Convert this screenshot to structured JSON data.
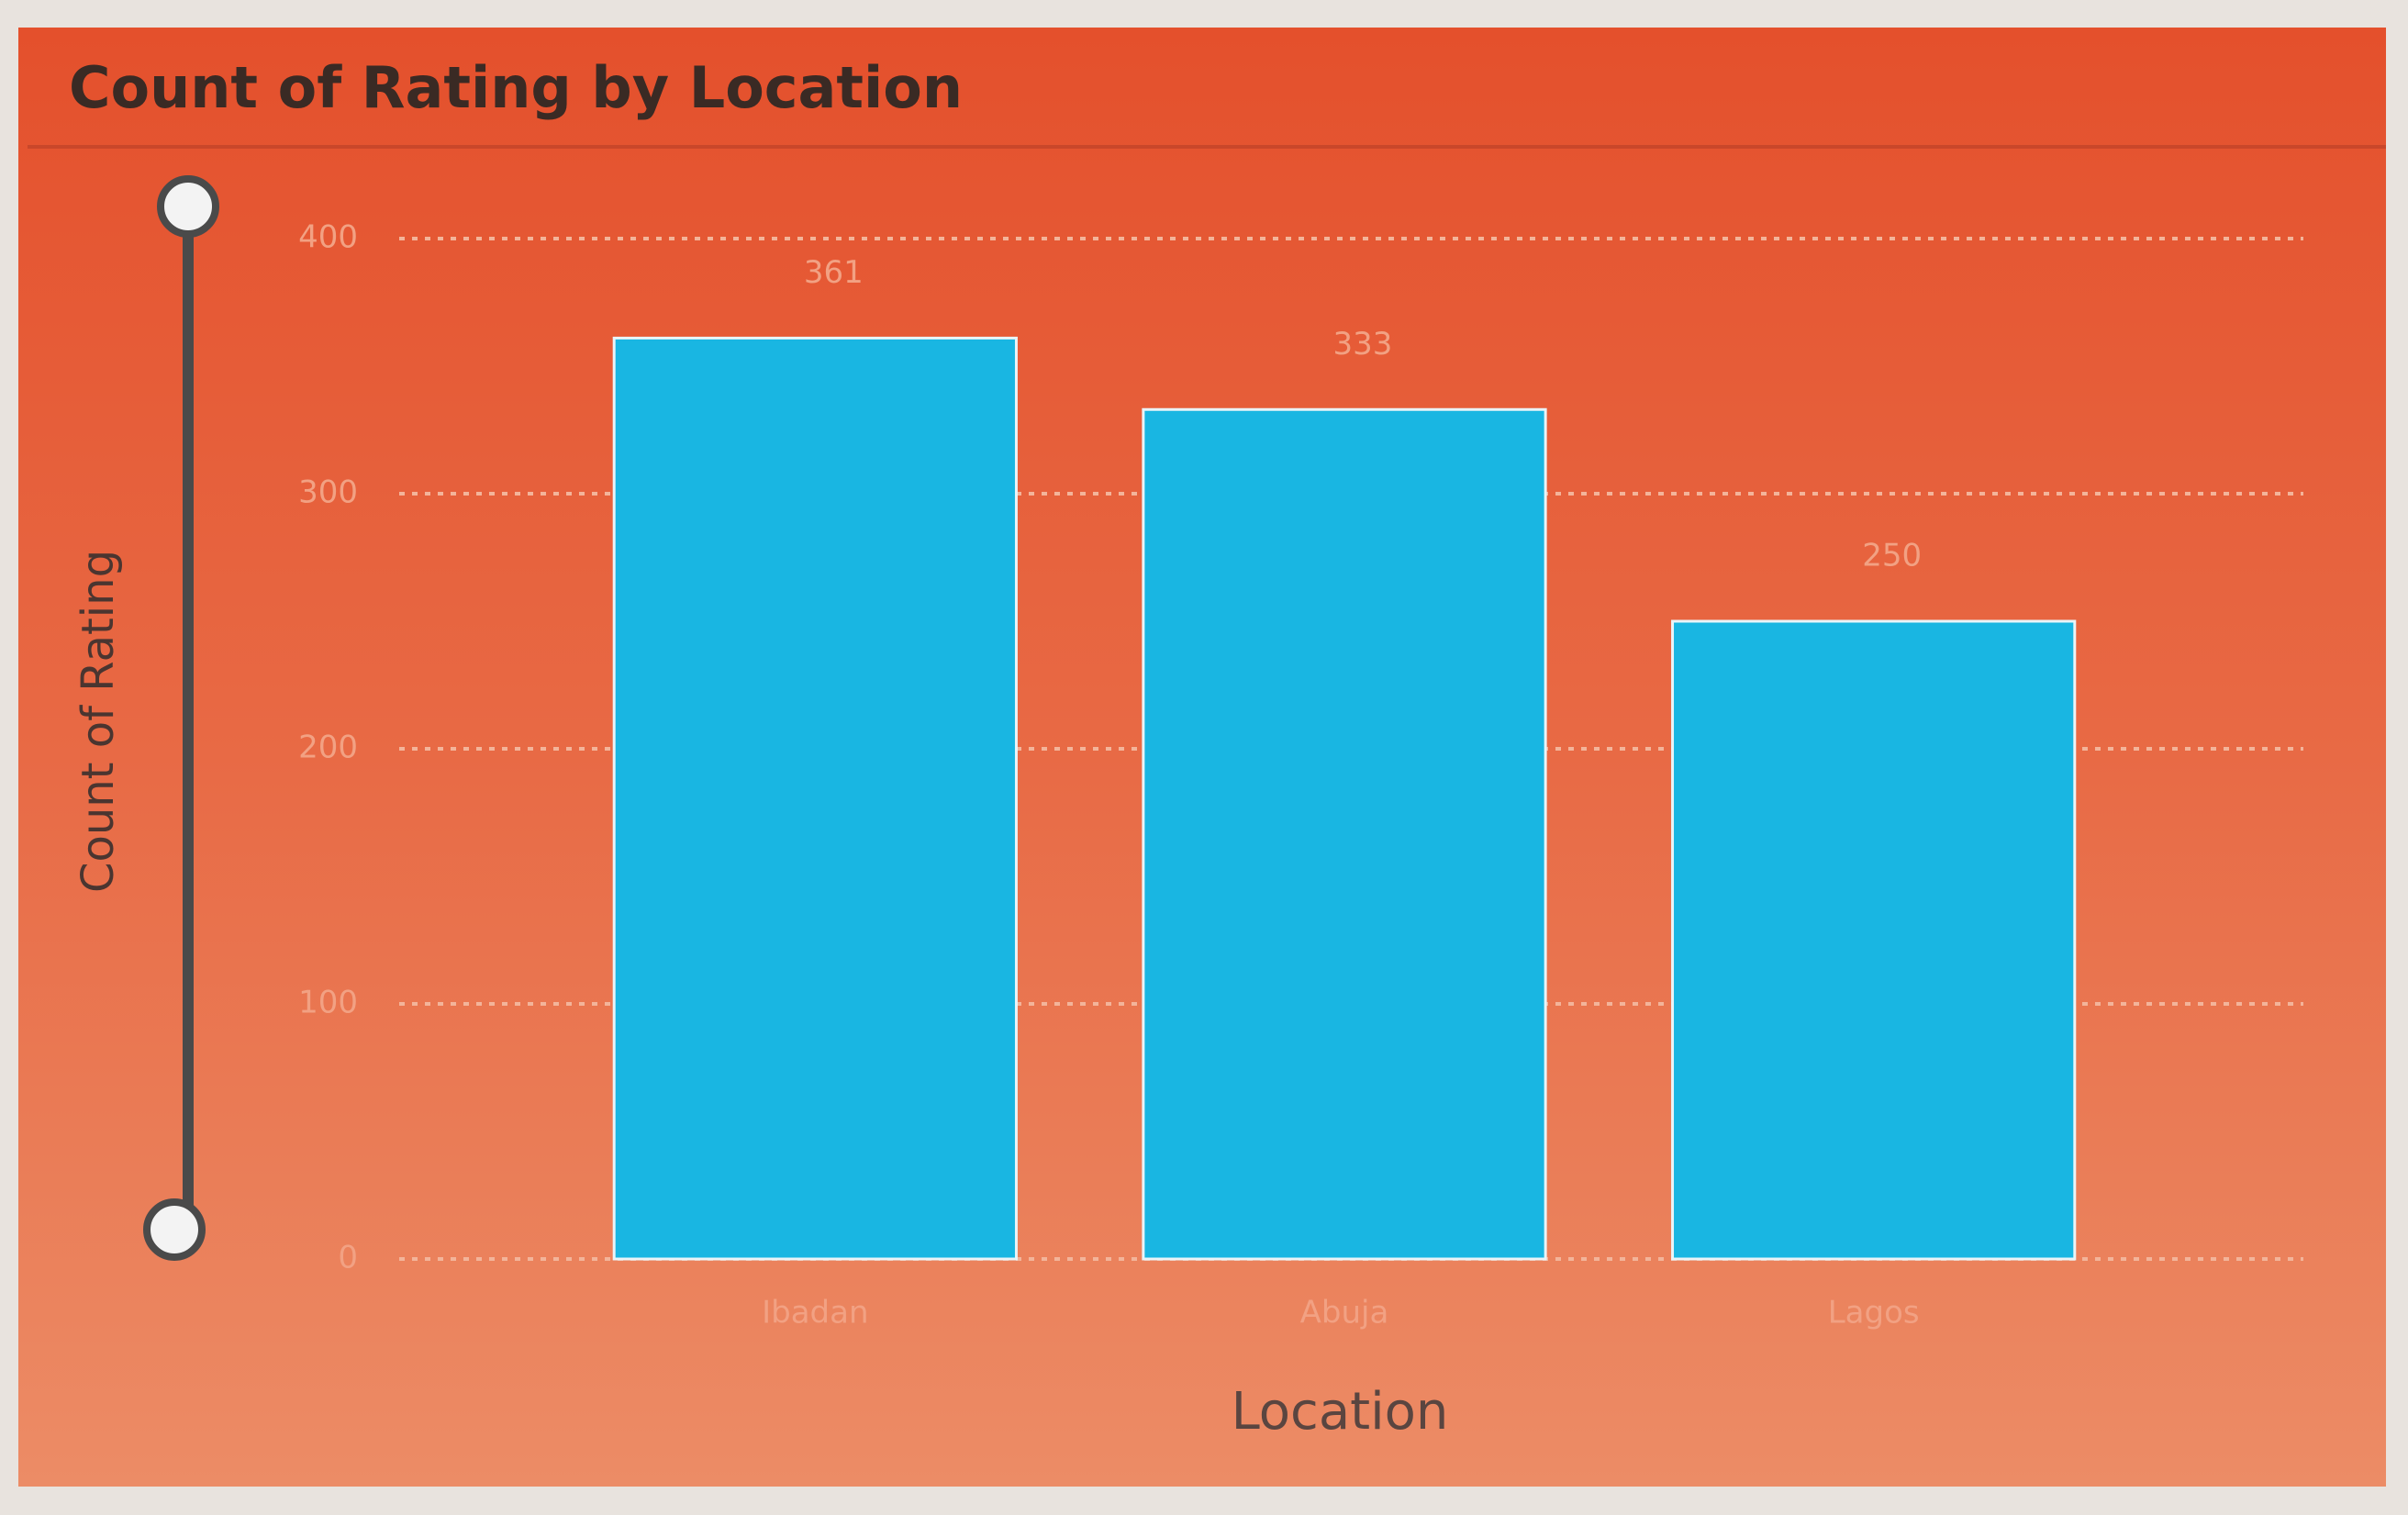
{
  "chart_data": {
    "type": "bar",
    "title": "Count of Rating by Location",
    "x_label": "Location",
    "y_label": "Count of Rating",
    "categories": [
      "Ibadan",
      "Abuja",
      "Lagos"
    ],
    "values": [
      361,
      333,
      250
    ],
    "color": "#19b6e2",
    "ylim": [
      0,
      400
    ],
    "yticks": [
      0,
      100,
      200,
      300,
      400
    ],
    "grid": true
  }
}
